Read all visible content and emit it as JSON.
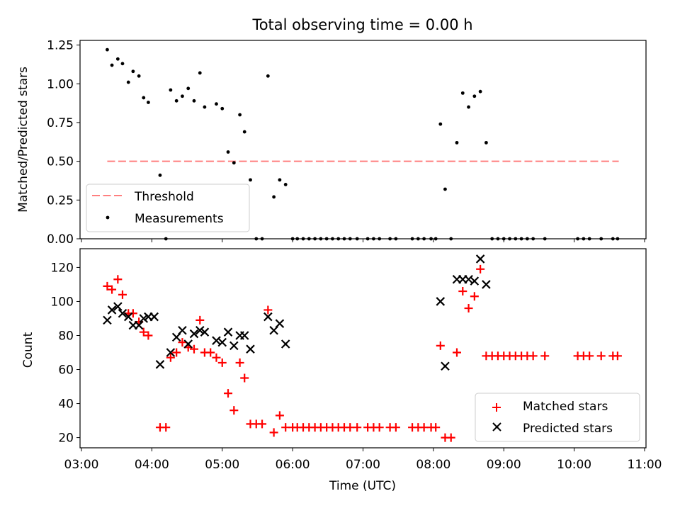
{
  "title": "Total observing time = 0.00 h",
  "colors": {
    "threshold": "#ff7f7f",
    "measurements": "#000000",
    "matched": "#ff0000",
    "predicted": "#000000"
  },
  "chart_data": [
    {
      "type": "scatter",
      "title": "Total observing time = 0.00 h",
      "ylabel": "Matched/Predicted stars",
      "ylim": [
        0,
        1.28
      ],
      "yticks": [
        "0.00",
        "0.25",
        "0.50",
        "0.75",
        "1.00",
        "1.25"
      ],
      "ytick_values": [
        0,
        0.25,
        0.5,
        0.75,
        1.0,
        1.25
      ],
      "legend": [
        "Threshold",
        "Measurements"
      ],
      "legend_position": "lower-left",
      "threshold": {
        "name": "Threshold",
        "y": 0.5,
        "x_start": "03:22",
        "x_end": "10:38"
      },
      "series": [
        {
          "name": "Measurements",
          "points": [
            [
              "03:22",
              1.22
            ],
            [
              "03:26",
              1.12
            ],
            [
              "03:31",
              1.16
            ],
            [
              "03:35",
              1.13
            ],
            [
              "03:40",
              1.01
            ],
            [
              "03:44",
              1.08
            ],
            [
              "03:49",
              1.05
            ],
            [
              "03:53",
              0.91
            ],
            [
              "03:57",
              0.88
            ],
            [
              "04:07",
              0.41
            ],
            [
              "04:12",
              0.0
            ],
            [
              "04:16",
              0.96
            ],
            [
              "04:21",
              0.89
            ],
            [
              "04:26",
              0.92
            ],
            [
              "04:31",
              0.97
            ],
            [
              "04:36",
              0.89
            ],
            [
              "04:41",
              1.07
            ],
            [
              "04:45",
              0.85
            ],
            [
              "04:55",
              0.87
            ],
            [
              "05:00",
              0.84
            ],
            [
              "05:05",
              0.56
            ],
            [
              "05:10",
              0.49
            ],
            [
              "05:15",
              0.8
            ],
            [
              "05:19",
              0.69
            ],
            [
              "05:24",
              0.38
            ],
            [
              "05:29",
              0.0
            ],
            [
              "05:34",
              0.0
            ],
            [
              "05:39",
              1.05
            ],
            [
              "05:44",
              0.27
            ],
            [
              "05:49",
              0.38
            ],
            [
              "05:54",
              0.35
            ],
            [
              "06:00",
              0.0
            ],
            [
              "06:04",
              0.0
            ],
            [
              "06:09",
              0.0
            ],
            [
              "06:14",
              0.0
            ],
            [
              "06:19",
              0.0
            ],
            [
              "06:24",
              0.0
            ],
            [
              "06:29",
              0.0
            ],
            [
              "06:34",
              0.0
            ],
            [
              "06:39",
              0.0
            ],
            [
              "06:44",
              0.0
            ],
            [
              "06:49",
              0.0
            ],
            [
              "06:55",
              0.0
            ],
            [
              "07:04",
              0.0
            ],
            [
              "07:09",
              0.0
            ],
            [
              "07:14",
              0.0
            ],
            [
              "07:23",
              0.0
            ],
            [
              "07:28",
              0.0
            ],
            [
              "07:42",
              0.0
            ],
            [
              "07:47",
              0.0
            ],
            [
              "07:52",
              0.0
            ],
            [
              "07:58",
              0.0
            ],
            [
              "08:02",
              0.0
            ],
            [
              "08:06",
              0.74
            ],
            [
              "08:10",
              0.32
            ],
            [
              "08:15",
              0.0
            ],
            [
              "08:20",
              0.62
            ],
            [
              "08:25",
              0.94
            ],
            [
              "08:30",
              0.85
            ],
            [
              "08:35",
              0.92
            ],
            [
              "08:40",
              0.95
            ],
            [
              "08:45",
              0.62
            ],
            [
              "08:50",
              0.0
            ],
            [
              "08:55",
              0.0
            ],
            [
              "09:00",
              0.0
            ],
            [
              "09:05",
              0.0
            ],
            [
              "09:10",
              0.0
            ],
            [
              "09:15",
              0.0
            ],
            [
              "09:20",
              0.0
            ],
            [
              "09:25",
              0.0
            ],
            [
              "09:35",
              0.0
            ],
            [
              "10:03",
              0.0
            ],
            [
              "10:08",
              0.0
            ],
            [
              "10:13",
              0.0
            ],
            [
              "10:23",
              0.0
            ],
            [
              "10:33",
              0.0
            ],
            [
              "10:37",
              0.0
            ]
          ]
        }
      ]
    },
    {
      "type": "scatter",
      "xlabel": "Time (UTC)",
      "ylabel": "Count",
      "ylim": [
        14,
        131
      ],
      "yticks": [
        "20",
        "40",
        "60",
        "80",
        "100",
        "120"
      ],
      "ytick_values": [
        20,
        40,
        60,
        80,
        100,
        120
      ],
      "xlim": [
        "03:00",
        "11:00"
      ],
      "xticks": [
        "03:00",
        "04:00",
        "05:00",
        "06:00",
        "07:00",
        "08:00",
        "09:00",
        "10:00",
        "11:00"
      ],
      "legend": [
        "Matched stars",
        "Predicted stars"
      ],
      "legend_position": "lower-right",
      "series": [
        {
          "name": "Matched stars",
          "points": [
            [
              "03:22",
              109
            ],
            [
              "03:26",
              107
            ],
            [
              "03:31",
              113
            ],
            [
              "03:35",
              104
            ],
            [
              "03:40",
              93
            ],
            [
              "03:44",
              93
            ],
            [
              "03:49",
              88
            ],
            [
              "03:53",
              82
            ],
            [
              "03:57",
              80
            ],
            [
              "04:07",
              26
            ],
            [
              "04:12",
              26
            ],
            [
              "04:16",
              67
            ],
            [
              "04:21",
              70
            ],
            [
              "04:26",
              76
            ],
            [
              "04:31",
              73
            ],
            [
              "04:36",
              72
            ],
            [
              "04:41",
              89
            ],
            [
              "04:45",
              70
            ],
            [
              "04:50",
              70
            ],
            [
              "04:55",
              67
            ],
            [
              "05:00",
              64
            ],
            [
              "05:05",
              46
            ],
            [
              "05:10",
              36
            ],
            [
              "05:15",
              64
            ],
            [
              "05:19",
              55
            ],
            [
              "05:24",
              28
            ],
            [
              "05:29",
              28
            ],
            [
              "05:34",
              28
            ],
            [
              "05:39",
              95
            ],
            [
              "05:44",
              23
            ],
            [
              "05:49",
              33
            ],
            [
              "05:54",
              26
            ],
            [
              "06:00",
              26
            ],
            [
              "06:04",
              26
            ],
            [
              "06:09",
              26
            ],
            [
              "06:14",
              26
            ],
            [
              "06:19",
              26
            ],
            [
              "06:24",
              26
            ],
            [
              "06:29",
              26
            ],
            [
              "06:34",
              26
            ],
            [
              "06:39",
              26
            ],
            [
              "06:44",
              26
            ],
            [
              "06:49",
              26
            ],
            [
              "06:55",
              26
            ],
            [
              "07:04",
              26
            ],
            [
              "07:09",
              26
            ],
            [
              "07:14",
              26
            ],
            [
              "07:23",
              26
            ],
            [
              "07:28",
              26
            ],
            [
              "07:42",
              26
            ],
            [
              "07:47",
              26
            ],
            [
              "07:52",
              26
            ],
            [
              "07:58",
              26
            ],
            [
              "08:02",
              26
            ],
            [
              "08:06",
              74
            ],
            [
              "08:10",
              20
            ],
            [
              "08:15",
              20
            ],
            [
              "08:20",
              70
            ],
            [
              "08:25",
              106
            ],
            [
              "08:30",
              96
            ],
            [
              "08:35",
              103
            ],
            [
              "08:40",
              119
            ],
            [
              "08:45",
              68
            ],
            [
              "08:50",
              68
            ],
            [
              "08:55",
              68
            ],
            [
              "09:00",
              68
            ],
            [
              "09:05",
              68
            ],
            [
              "09:10",
              68
            ],
            [
              "09:15",
              68
            ],
            [
              "09:20",
              68
            ],
            [
              "09:25",
              68
            ],
            [
              "09:35",
              68
            ],
            [
              "10:03",
              68
            ],
            [
              "10:08",
              68
            ],
            [
              "10:13",
              68
            ],
            [
              "10:23",
              68
            ],
            [
              "10:33",
              68
            ],
            [
              "10:37",
              68
            ]
          ]
        },
        {
          "name": "Predicted stars",
          "points": [
            [
              "03:22",
              89
            ],
            [
              "03:26",
              95
            ],
            [
              "03:31",
              97
            ],
            [
              "03:35",
              93
            ],
            [
              "03:40",
              91
            ],
            [
              "03:44",
              86
            ],
            [
              "03:49",
              86
            ],
            [
              "03:53",
              90
            ],
            [
              "03:57",
              91
            ],
            [
              "04:02",
              91
            ],
            [
              "04:07",
              63
            ],
            [
              "04:16",
              70
            ],
            [
              "04:21",
              79
            ],
            [
              "04:26",
              83
            ],
            [
              "04:31",
              75
            ],
            [
              "04:36",
              81
            ],
            [
              "04:41",
              83
            ],
            [
              "04:45",
              82
            ],
            [
              "04:55",
              77
            ],
            [
              "05:00",
              76
            ],
            [
              "05:05",
              82
            ],
            [
              "05:10",
              74
            ],
            [
              "05:15",
              80
            ],
            [
              "05:19",
              80
            ],
            [
              "05:24",
              72
            ],
            [
              "05:39",
              91
            ],
            [
              "05:44",
              83
            ],
            [
              "05:49",
              87
            ],
            [
              "05:54",
              75
            ],
            [
              "08:06",
              100
            ],
            [
              "08:10",
              62
            ],
            [
              "08:20",
              113
            ],
            [
              "08:25",
              113
            ],
            [
              "08:30",
              113
            ],
            [
              "08:35",
              112
            ],
            [
              "08:40",
              125
            ],
            [
              "08:45",
              110
            ]
          ]
        }
      ]
    }
  ]
}
